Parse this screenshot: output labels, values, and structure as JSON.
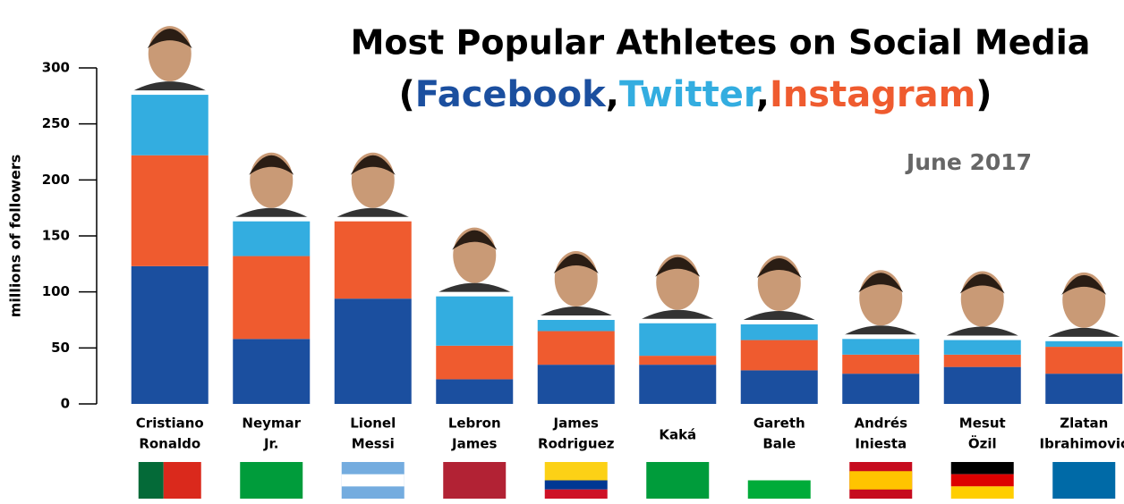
{
  "chart_data": {
    "type": "stacked-bar",
    "title": "Most Popular Athletes on Social Media",
    "legend_punctuation": [
      "(",
      ",",
      ",",
      ")"
    ],
    "annotation": "June 2017",
    "y_label": "millions of followers",
    "categories": [
      [
        "Cristiano",
        "Ronaldo"
      ],
      [
        "Neymar",
        "Jr."
      ],
      [
        "Lionel",
        "Messi"
      ],
      [
        "Lebron",
        "James"
      ],
      [
        "James",
        "Rodriguez"
      ],
      [
        "Kaká"
      ],
      [
        "Gareth",
        "Bale"
      ],
      [
        "Andrés",
        "Iniesta"
      ],
      [
        "Mesut",
        "Özil"
      ],
      [
        "Zlatan",
        "Ibrahimović"
      ]
    ],
    "series": [
      {
        "name": "Facebook",
        "color": "#1b4f9f",
        "values": [
          123,
          58,
          94,
          22,
          35,
          35,
          30,
          27,
          33,
          27
        ]
      },
      {
        "name": "Twitter",
        "color": "#33ade0",
        "values": [
          54,
          31,
          0,
          44,
          10,
          29,
          14,
          14,
          13,
          5
        ]
      },
      {
        "name": "Instagram",
        "color": "#ef5b2f",
        "values": [
          99,
          74,
          69,
          30,
          30,
          8,
          27,
          17,
          11,
          24
        ]
      }
    ],
    "stack_order": [
      0,
      2,
      1
    ],
    "ylim": [
      0,
      300
    ],
    "yticks": [
      0,
      50,
      100,
      150,
      200,
      250,
      300
    ],
    "grid": false
  }
}
